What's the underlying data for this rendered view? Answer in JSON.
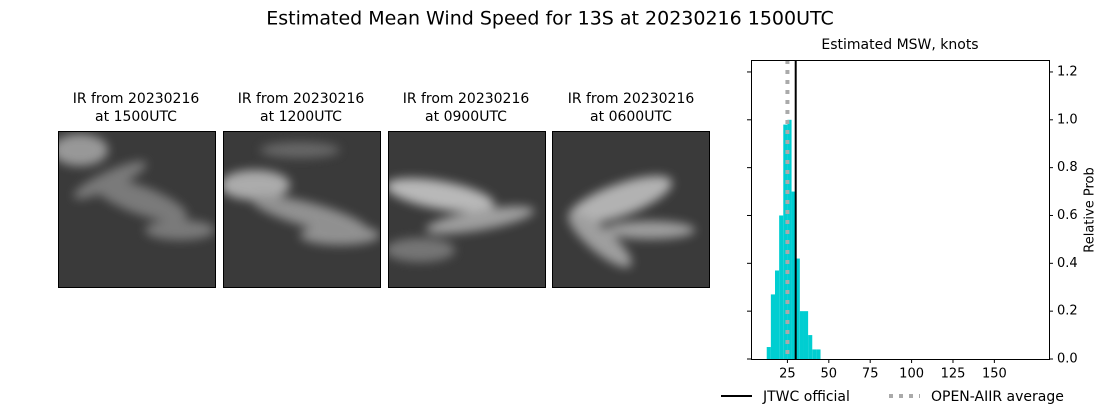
{
  "title": "Estimated Mean Wind Speed for 13S at 20230216 1500UTC",
  "images": [
    {
      "caption_line1": "IR from 20230216",
      "caption_line2": "at 1500UTC"
    },
    {
      "caption_line1": "IR from 20230216",
      "caption_line2": "at 1200UTC"
    },
    {
      "caption_line1": "IR from 20230216",
      "caption_line2": "at 0900UTC"
    },
    {
      "caption_line1": "IR from 20230216",
      "caption_line2": "at 0600UTC"
    }
  ],
  "chart_data": {
    "type": "histogram",
    "title": "Estimated MSW, knots",
    "y_label": "Relative Prob",
    "bins": [
      12.5,
      15,
      17.5,
      20,
      22.5,
      25,
      27.5,
      30,
      32.5,
      35,
      37.5,
      40,
      42.5,
      45
    ],
    "values": [
      0.05,
      0.27,
      0.37,
      0.6,
      0.98,
      1.0,
      0.7,
      0.42,
      0.2,
      0.2,
      0.1,
      0.04,
      0.04
    ],
    "color": "#00ced1",
    "xlim": [
      3,
      183
    ],
    "ylim": [
      0,
      1.25
    ],
    "xticks": [
      25,
      50,
      75,
      100,
      125,
      150
    ],
    "yticks": [
      {
        "value": 0,
        "label": "0.0"
      },
      {
        "value": 0.2,
        "label": "0.2"
      },
      {
        "value": 0.4,
        "label": "0.4"
      },
      {
        "value": 0.6,
        "label": "0.6"
      },
      {
        "value": 0.8,
        "label": "0.8"
      },
      {
        "value": 1.0,
        "label": "1.0"
      },
      {
        "value": 1.2,
        "label": "1.2"
      }
    ],
    "lines": [
      {
        "name": "JTWC official",
        "value": 30,
        "color": "#000000",
        "style": "solid"
      },
      {
        "name": "OPEN-AIIR average",
        "value": 25,
        "color": "#aaaaaa",
        "style": "dotted"
      }
    ]
  }
}
